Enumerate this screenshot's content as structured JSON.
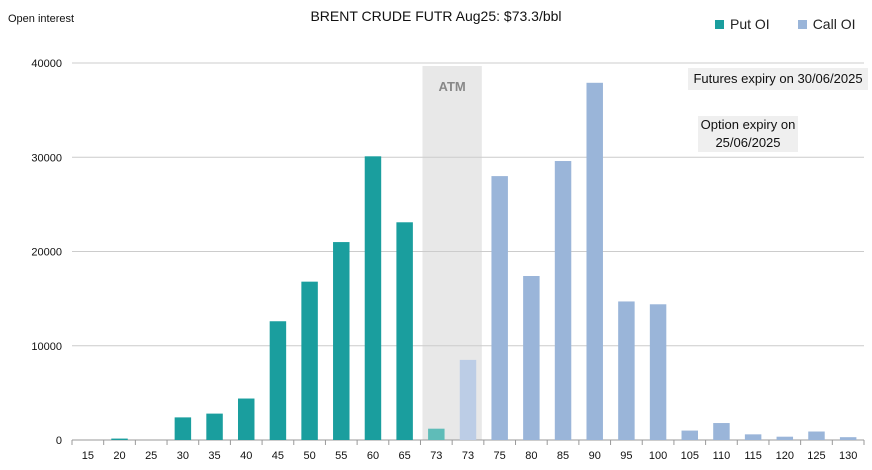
{
  "title": "BRENT CRUDE FUTR  Aug25: $73.3/bbl",
  "y_axis_label": "Open interest",
  "legend": {
    "put": "Put OI",
    "call": "Call OI"
  },
  "annotations": {
    "atm": "ATM",
    "futures_expiry": "Futures expiry on 30/06/2025",
    "option_expiry_line1": "Option expiry on",
    "option_expiry_line2": "25/06/2025"
  },
  "colors": {
    "put": "#1a9e9e",
    "call": "#9ab5d9",
    "put_atm": "#5fbcb8",
    "call_atm": "#bccde6",
    "atm_band": "#e8e8e8",
    "grid": "#cccccc"
  },
  "chart_data": {
    "type": "bar",
    "categories": [
      "15",
      "20",
      "25",
      "30",
      "35",
      "40",
      "45",
      "50",
      "55",
      "60",
      "65",
      "73",
      "73",
      "75",
      "80",
      "85",
      "90",
      "95",
      "100",
      "105",
      "110",
      "115",
      "120",
      "125",
      "130"
    ],
    "series": [
      {
        "name": "Put OI",
        "values": [
          0,
          150,
          0,
          2400,
          2800,
          4400,
          12600,
          16800,
          21000,
          30100,
          23100,
          1200,
          0,
          0,
          0,
          0,
          0,
          0,
          0,
          0,
          0,
          0,
          0,
          0,
          0
        ]
      },
      {
        "name": "Call OI",
        "values": [
          0,
          0,
          0,
          0,
          0,
          0,
          0,
          0,
          0,
          0,
          0,
          0,
          8500,
          28000,
          17400,
          29600,
          37900,
          14700,
          14400,
          1000,
          1800,
          600,
          350,
          900,
          300
        ]
      }
    ],
    "ylim": [
      0,
      40000
    ],
    "yticks": [
      "0",
      "10000",
      "20000",
      "30000",
      "40000"
    ],
    "grid": true,
    "legend_position": "top-right",
    "atm_category_indices": [
      11,
      12
    ]
  }
}
